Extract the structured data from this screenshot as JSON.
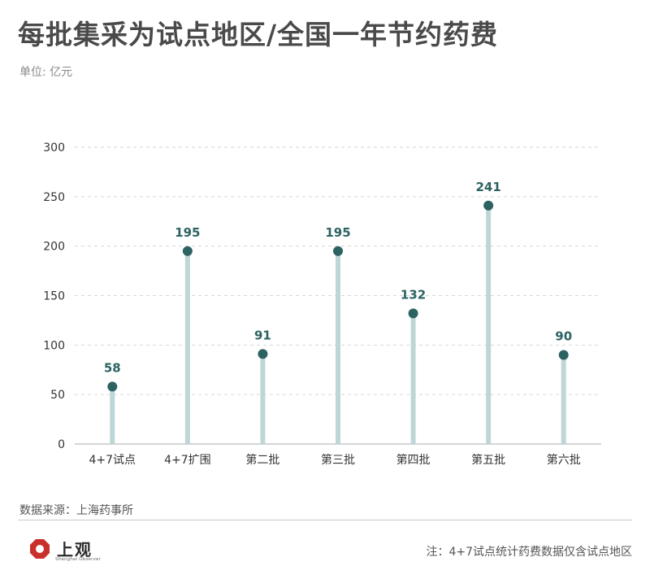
{
  "header": {
    "title": "每批集采为试点地区/全国一年节约药费",
    "unit": "单位: 亿元"
  },
  "footer": {
    "source": "数据来源：上海药事所",
    "brand_name": "上观",
    "brand_sub": "Shanghai Observer",
    "note": "注：4+7试点统计药费数据仅含试点地区"
  },
  "colors": {
    "stem": "#bfd6d6",
    "dot": "#2d6262",
    "label": "#2d6262",
    "logo_red": "#c9302c"
  },
  "chart_data": {
    "type": "lollipop",
    "categories": [
      "4+7试点",
      "4+7扩围",
      "第二批",
      "第三批",
      "第四批",
      "第五批",
      "第六批"
    ],
    "values": [
      58,
      195,
      91,
      195,
      132,
      241,
      90
    ],
    "yticks": [
      0,
      50,
      100,
      150,
      200,
      250,
      300
    ],
    "ylim": [
      0,
      300
    ],
    "grid": true,
    "title": "每批集采为试点地区/全国一年节约药费",
    "ylabel": "单位: 亿元"
  }
}
